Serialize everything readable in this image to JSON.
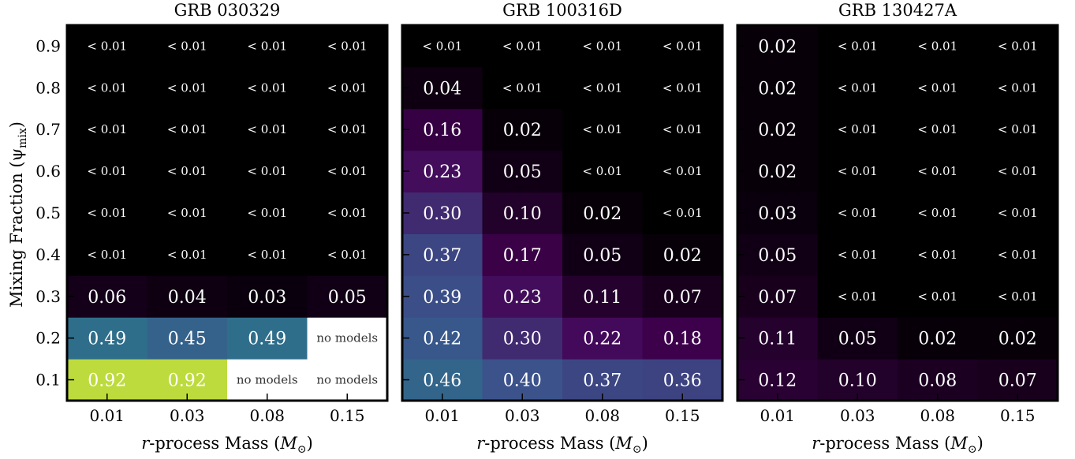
{
  "ylabel": "Mixing Fraction (ψ",
  "ylabel_sub": "mix",
  "ylabel_close": ")",
  "xlabel_italic": "r",
  "xlabel_mid": "-process Mass (",
  "xlabel_M": "M",
  "xlabel_sun": "⊙",
  "xlabel_close": ")",
  "colormap": [
    "#000000",
    "#440154",
    "#3b528b",
    "#21918c",
    "#5ec962",
    "#fde725"
  ],
  "nomodel_color": "#ffffff",
  "chart_data": [
    {
      "type": "heatmap",
      "title": "GRB 030329",
      "x": [
        "0.01",
        "0.03",
        "0.08",
        "0.15"
      ],
      "y": [
        "0.1",
        "0.2",
        "0.3",
        "0.4",
        "0.5",
        "0.6",
        "0.7",
        "0.8",
        "0.9"
      ],
      "values": [
        [
          0.92,
          0.92,
          null,
          null
        ],
        [
          0.49,
          0.45,
          0.49,
          null
        ],
        [
          0.06,
          0.04,
          0.03,
          0.05
        ],
        [
          0.005,
          0.005,
          0.005,
          0.005
        ],
        [
          0.005,
          0.005,
          0.005,
          0.005
        ],
        [
          0.005,
          0.005,
          0.005,
          0.005
        ],
        [
          0.005,
          0.005,
          0.005,
          0.005
        ],
        [
          0.005,
          0.005,
          0.005,
          0.005
        ],
        [
          0.005,
          0.005,
          0.005,
          0.005
        ]
      ],
      "labels": [
        [
          "0.92",
          "0.92",
          "no models",
          "no models"
        ],
        [
          "0.49",
          "0.45",
          "0.49",
          "no models"
        ],
        [
          "0.06",
          "0.04",
          "0.03",
          "0.05"
        ],
        [
          "< 0.01",
          "< 0.01",
          "< 0.01",
          "< 0.01"
        ],
        [
          "< 0.01",
          "< 0.01",
          "< 0.01",
          "< 0.01"
        ],
        [
          "< 0.01",
          "< 0.01",
          "< 0.01",
          "< 0.01"
        ],
        [
          "< 0.01",
          "< 0.01",
          "< 0.01",
          "< 0.01"
        ],
        [
          "< 0.01",
          "< 0.01",
          "< 0.01",
          "< 0.01"
        ],
        [
          "< 0.01",
          "< 0.01",
          "< 0.01",
          "< 0.01"
        ]
      ]
    },
    {
      "type": "heatmap",
      "title": "GRB 100316D",
      "x": [
        "0.01",
        "0.03",
        "0.08",
        "0.15"
      ],
      "y": [
        "0.1",
        "0.2",
        "0.3",
        "0.4",
        "0.5",
        "0.6",
        "0.7",
        "0.8",
        "0.9"
      ],
      "values": [
        [
          0.46,
          0.4,
          0.37,
          0.36
        ],
        [
          0.42,
          0.3,
          0.22,
          0.18
        ],
        [
          0.39,
          0.23,
          0.11,
          0.07
        ],
        [
          0.37,
          0.17,
          0.05,
          0.02
        ],
        [
          0.3,
          0.1,
          0.02,
          0.005
        ],
        [
          0.23,
          0.05,
          0.005,
          0.005
        ],
        [
          0.16,
          0.02,
          0.005,
          0.005
        ],
        [
          0.04,
          0.005,
          0.005,
          0.005
        ],
        [
          0.005,
          0.005,
          0.005,
          0.005
        ]
      ],
      "labels": [
        [
          "0.46",
          "0.40",
          "0.37",
          "0.36"
        ],
        [
          "0.42",
          "0.30",
          "0.22",
          "0.18"
        ],
        [
          "0.39",
          "0.23",
          "0.11",
          "0.07"
        ],
        [
          "0.37",
          "0.17",
          "0.05",
          "0.02"
        ],
        [
          "0.30",
          "0.10",
          "0.02",
          "< 0.01"
        ],
        [
          "0.23",
          "0.05",
          "< 0.01",
          "< 0.01"
        ],
        [
          "0.16",
          "0.02",
          "< 0.01",
          "< 0.01"
        ],
        [
          "0.04",
          "< 0.01",
          "< 0.01",
          "< 0.01"
        ],
        [
          "< 0.01",
          "< 0.01",
          "< 0.01",
          "< 0.01"
        ]
      ]
    },
    {
      "type": "heatmap",
      "title": "GRB 130427A",
      "x": [
        "0.01",
        "0.03",
        "0.08",
        "0.15"
      ],
      "y": [
        "0.1",
        "0.2",
        "0.3",
        "0.4",
        "0.5",
        "0.6",
        "0.7",
        "0.8",
        "0.9"
      ],
      "values": [
        [
          0.12,
          0.1,
          0.08,
          0.07
        ],
        [
          0.11,
          0.05,
          0.02,
          0.02
        ],
        [
          0.07,
          0.005,
          0.005,
          0.005
        ],
        [
          0.05,
          0.005,
          0.005,
          0.005
        ],
        [
          0.03,
          0.005,
          0.005,
          0.005
        ],
        [
          0.02,
          0.005,
          0.005,
          0.005
        ],
        [
          0.02,
          0.005,
          0.005,
          0.005
        ],
        [
          0.02,
          0.005,
          0.005,
          0.005
        ],
        [
          0.02,
          0.005,
          0.005,
          0.005
        ]
      ],
      "labels": [
        [
          "0.12",
          "0.10",
          "0.08",
          "0.07"
        ],
        [
          "0.11",
          "0.05",
          "0.02",
          "0.02"
        ],
        [
          "0.07",
          "< 0.01",
          "< 0.01",
          "< 0.01"
        ],
        [
          "0.05",
          "< 0.01",
          "< 0.01",
          "< 0.01"
        ],
        [
          "0.03",
          "< 0.01",
          "< 0.01",
          "< 0.01"
        ],
        [
          "0.02",
          "< 0.01",
          "< 0.01",
          "< 0.01"
        ],
        [
          "0.02",
          "< 0.01",
          "< 0.01",
          "< 0.01"
        ],
        [
          "0.02",
          "< 0.01",
          "< 0.01",
          "< 0.01"
        ],
        [
          "0.02",
          "< 0.01",
          "< 0.01",
          "< 0.01"
        ]
      ]
    }
  ]
}
